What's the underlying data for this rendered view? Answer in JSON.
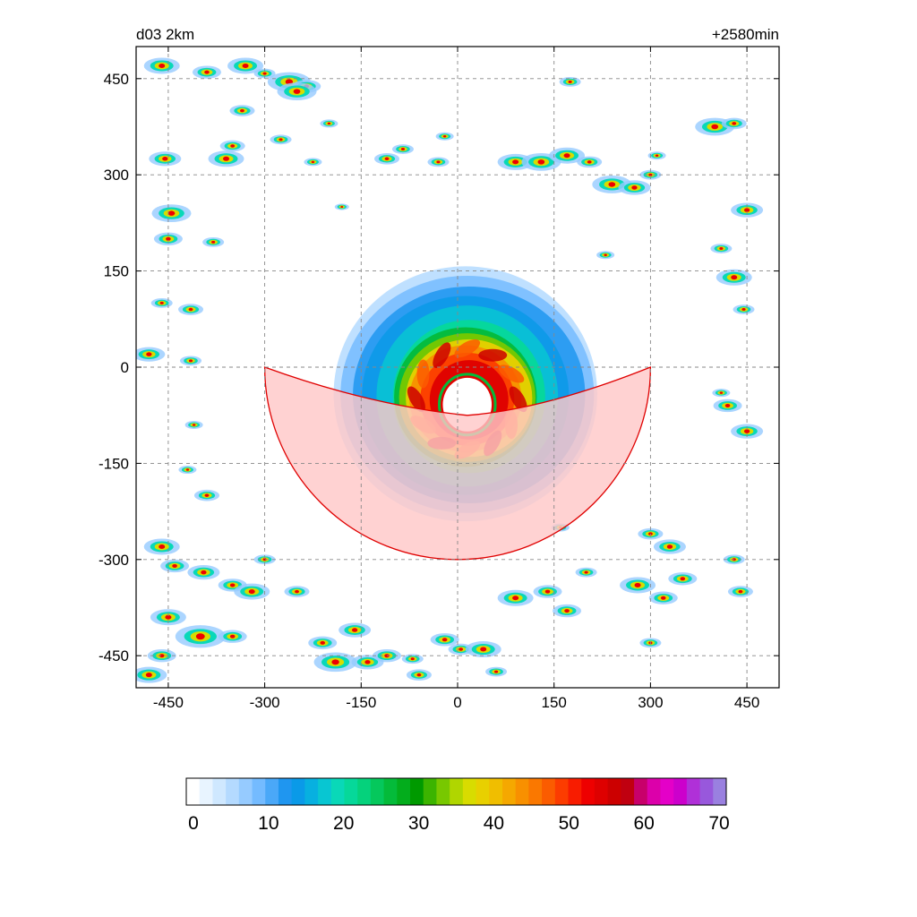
{
  "chart_data": {
    "type": "heatmap",
    "title_left": "d03 2km",
    "title_right": "+2580min",
    "xlim": [
      -500,
      500
    ],
    "ylim": [
      -500,
      500
    ],
    "xticks": [
      -450,
      -300,
      -150,
      0,
      150,
      300,
      450
    ],
    "yticks": [
      450,
      300,
      150,
      0,
      -150,
      -300,
      -450
    ],
    "grid": true,
    "sector": {
      "radius": 300,
      "start_deg": 180,
      "end_deg": 360,
      "fill": "#ffc8c8",
      "stroke": "#e00000"
    },
    "storm": {
      "center": [
        15,
        -50
      ],
      "eye_radius": 38,
      "core_radius": 110,
      "outer_radius": 205
    },
    "colorbar": {
      "ticks": [
        0,
        10,
        20,
        30,
        40,
        50,
        60,
        70
      ],
      "min": 0,
      "max": 70,
      "colors": [
        "#ffffff",
        "#e8f4ff",
        "#cfe8ff",
        "#b4daff",
        "#96cbff",
        "#74bbff",
        "#4aa8f8",
        "#1f96f0",
        "#0a9ae8",
        "#07b0e0",
        "#08c6d2",
        "#09d8b8",
        "#06d89a",
        "#05d27c",
        "#05c85c",
        "#04bb3a",
        "#03ad1c",
        "#009a00",
        "#3cb400",
        "#78c800",
        "#b0d600",
        "#d8dc00",
        "#e8d000",
        "#f0be00",
        "#f5a800",
        "#f89000",
        "#fa7800",
        "#fb5c00",
        "#fc3c00",
        "#f81c00",
        "#ee0000",
        "#de0000",
        "#cc0000",
        "#c00010",
        "#c8006a",
        "#dc00aa",
        "#e400c8",
        "#cc00cc",
        "#b030d8",
        "#9858dc",
        "#9a80e0"
      ]
    },
    "cells": [
      [
        -460,
        470,
        1.0
      ],
      [
        -390,
        460,
        0.8
      ],
      [
        -330,
        470,
        1.0
      ],
      [
        -300,
        458,
        0.6
      ],
      [
        -262,
        445,
        1.2
      ],
      [
        -235,
        438,
        0.8
      ],
      [
        -335,
        400,
        0.7
      ],
      [
        -250,
        430,
        1.1
      ],
      [
        -455,
        325,
        0.9
      ],
      [
        -360,
        325,
        1.0
      ],
      [
        -350,
        345,
        0.7
      ],
      [
        -445,
        240,
        1.1
      ],
      [
        -450,
        200,
        0.8
      ],
      [
        -380,
        195,
        0.6
      ],
      [
        -460,
        100,
        0.6
      ],
      [
        -415,
        90,
        0.7
      ],
      [
        -480,
        20,
        0.9
      ],
      [
        -415,
        10,
        0.6
      ],
      [
        -410,
        -90,
        0.5
      ],
      [
        -390,
        -200,
        0.7
      ],
      [
        -460,
        -280,
        1.0
      ],
      [
        -440,
        -310,
        0.8
      ],
      [
        -395,
        -320,
        0.9
      ],
      [
        -350,
        -340,
        0.8
      ],
      [
        -320,
        -350,
        1.0
      ],
      [
        -300,
        -300,
        0.6
      ],
      [
        -450,
        -390,
        1.0
      ],
      [
        -400,
        -420,
        1.4
      ],
      [
        -350,
        -420,
        0.8
      ],
      [
        -250,
        -350,
        0.7
      ],
      [
        -190,
        -460,
        1.2
      ],
      [
        -140,
        -460,
        0.9
      ],
      [
        -110,
        -450,
        0.8
      ],
      [
        -70,
        -455,
        0.6
      ],
      [
        -20,
        -425,
        0.8
      ],
      [
        5,
        -440,
        0.7
      ],
      [
        40,
        -440,
        1.0
      ],
      [
        60,
        -475,
        0.6
      ],
      [
        -60,
        -480,
        0.7
      ],
      [
        -160,
        -410,
        0.9
      ],
      [
        -210,
        -430,
        0.8
      ],
      [
        -480,
        -480,
        1.0
      ],
      [
        -460,
        -450,
        0.8
      ],
      [
        -110,
        325,
        0.7
      ],
      [
        -85,
        340,
        0.6
      ],
      [
        -30,
        320,
        0.6
      ],
      [
        -20,
        360,
        0.5
      ],
      [
        90,
        320,
        1.0
      ],
      [
        130,
        320,
        1.1
      ],
      [
        170,
        330,
        1.0
      ],
      [
        205,
        320,
        0.7
      ],
      [
        240,
        285,
        1.1
      ],
      [
        275,
        280,
        0.9
      ],
      [
        300,
        300,
        0.6
      ],
      [
        310,
        330,
        0.5
      ],
      [
        175,
        445,
        0.6
      ],
      [
        400,
        375,
        1.1
      ],
      [
        430,
        380,
        0.7
      ],
      [
        450,
        245,
        0.9
      ],
      [
        430,
        140,
        1.0
      ],
      [
        410,
        185,
        0.6
      ],
      [
        445,
        90,
        0.6
      ],
      [
        420,
        -60,
        0.8
      ],
      [
        450,
        -100,
        0.9
      ],
      [
        410,
        -40,
        0.5
      ],
      [
        300,
        -260,
        0.7
      ],
      [
        330,
        -280,
        0.9
      ],
      [
        350,
        -330,
        0.8
      ],
      [
        280,
        -340,
        1.0
      ],
      [
        320,
        -360,
        0.8
      ],
      [
        440,
        -350,
        0.7
      ],
      [
        170,
        -380,
        0.8
      ],
      [
        300,
        -430,
        0.6
      ],
      [
        90,
        -360,
        1.0
      ],
      [
        140,
        -350,
        0.8
      ],
      [
        200,
        -320,
        0.6
      ],
      [
        -420,
        -160,
        0.5
      ],
      [
        430,
        -300,
        0.6
      ],
      [
        160,
        -250,
        0.5
      ],
      [
        -200,
        380,
        0.5
      ],
      [
        230,
        175,
        0.5
      ],
      [
        -275,
        355,
        0.6
      ],
      [
        -225,
        320,
        0.5
      ],
      [
        -180,
        250,
        0.4
      ]
    ]
  }
}
